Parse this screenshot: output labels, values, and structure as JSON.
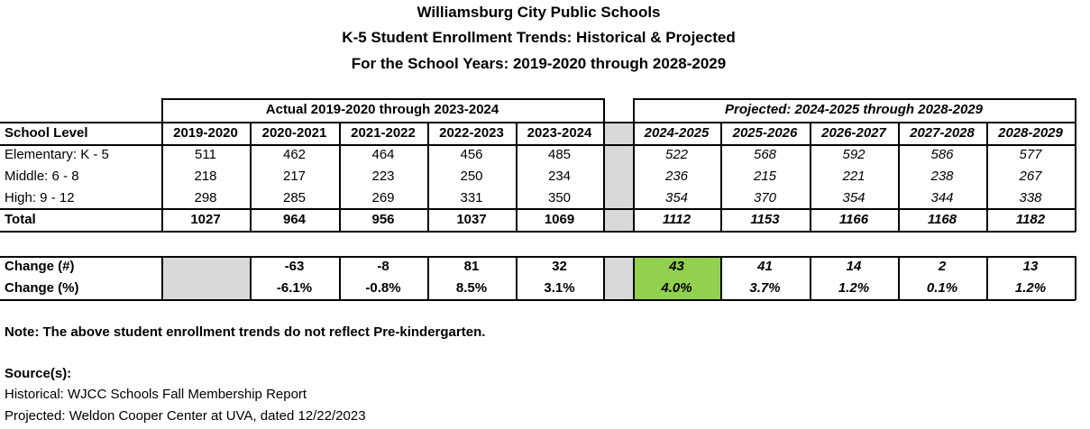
{
  "header": {
    "title": [
      "Williamsburg City Public Schools",
      "K-5 Student Enrollment Trends: Historical & Projected",
      "For the School Years: 2019-2020 through 2028-2029"
    ]
  },
  "table": {
    "group_headers": [
      "Actual 2019-2020 through 2023-2024",
      "Projected: 2024-2025 through 2028-2029"
    ],
    "columns": [
      "School Level",
      "2019-2020",
      "2020-2021",
      "2021-2022",
      "2022-2023",
      "2023-2024",
      "2024-2025",
      "2025-2026",
      "2026-2027",
      "2027-2028",
      "2028-2029"
    ],
    "rows": [
      [
        "Elementary: K - 5",
        "511",
        "462",
        "464",
        "456",
        "485",
        "522",
        "568",
        "592",
        "586",
        "577"
      ],
      [
        "Middle: 6 - 8",
        "218",
        "217",
        "223",
        "250",
        "234",
        "236",
        "215",
        "221",
        "238",
        "267"
      ],
      [
        "High: 9 - 12",
        "298",
        "285",
        "269",
        "331",
        "350",
        "354",
        "370",
        "354",
        "344",
        "338"
      ],
      [
        "Total",
        "1027",
        "964",
        "956",
        "1037",
        "1069",
        "1112",
        "1153",
        "1166",
        "1168",
        "1182"
      ]
    ]
  },
  "change": {
    "rows": [
      {
        "label": "Change (#)",
        "values": [
          "-63",
          "-8",
          "81",
          "32",
          "43",
          "41",
          "14",
          "2",
          "13"
        ]
      },
      {
        "label": "Change (%)",
        "values": [
          "-6.1%",
          "-0.8%",
          "8.5%",
          "3.1%",
          "4.0%",
          "3.7%",
          "1.2%",
          "0.1%",
          "1.2%"
        ]
      }
    ]
  },
  "note": "Note:  The above student enrollment trends do not reflect Pre-kindergarten.",
  "sources": {
    "label": "Source(s):",
    "lines": [
      "Historical: WJCC Schools Fall Membership Report",
      "Projected: Weldon Cooper Center at UVA, dated 12/22/2023"
    ]
  }
}
